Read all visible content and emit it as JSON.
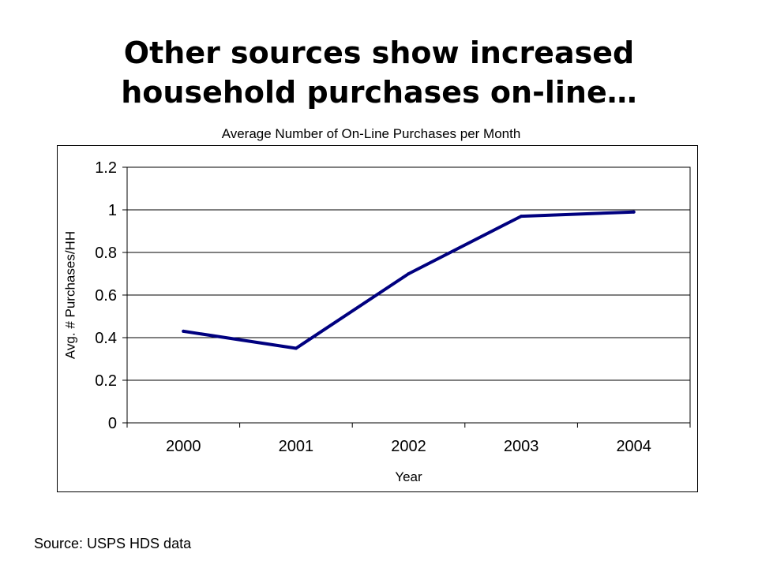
{
  "slide": {
    "title_line1": "Other sources show increased",
    "title_line2": "household purchases on-line…",
    "source": "Source: USPS HDS data"
  },
  "chart_data": {
    "type": "line",
    "title": "Average Number of On-Line Purchases per Month",
    "xlabel": "Year",
    "ylabel": "Avg. # Purchases/HH",
    "categories": [
      "2000",
      "2001",
      "2002",
      "2003",
      "2004"
    ],
    "series": [
      {
        "values": [
          0.43,
          0.35,
          0.7,
          0.97,
          0.99
        ]
      }
    ],
    "ylim": [
      0,
      1.2
    ],
    "yticks": [
      "0",
      "0.2",
      "0.4",
      "0.6",
      "0.8",
      "1",
      "1.2"
    ],
    "grid": "horizontal",
    "line_color": "#00007F"
  }
}
